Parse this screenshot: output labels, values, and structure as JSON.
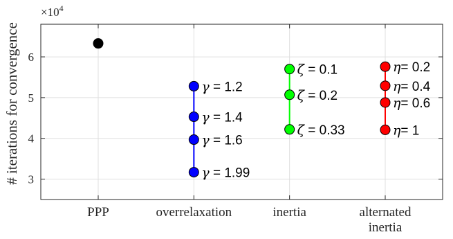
{
  "chart_data": {
    "type": "scatter",
    "title": "",
    "xlabel": "",
    "ylabel": "# iterations for convergence",
    "y_exponent_label": "×10",
    "y_exponent_power": "4",
    "ylim": [
      2.5,
      6.8
    ],
    "yticks": [
      "3",
      "4",
      "5",
      "6"
    ],
    "ytick_values": [
      3,
      4,
      5,
      6
    ],
    "grid": true,
    "categories": [
      {
        "lines": [
          "PPP"
        ]
      },
      {
        "lines": [
          "overrelaxation"
        ]
      },
      {
        "lines": [
          "inertia"
        ]
      },
      {
        "lines": [
          "alternated",
          "inertia"
        ]
      }
    ],
    "xlim": [
      0.4,
      4.6
    ],
    "series": [
      {
        "color": "#000000",
        "x": 1.0,
        "connected": false,
        "points": [
          {
            "y": 6.33,
            "symbol": "",
            "text": ""
          }
        ]
      },
      {
        "color": "#0000ff",
        "x": 2.0,
        "connected": true,
        "points": [
          {
            "y": 5.28,
            "symbol": "γ",
            "text": " = 1.2"
          },
          {
            "y": 4.53,
            "symbol": "γ",
            "text": " = 1.4"
          },
          {
            "y": 3.97,
            "symbol": "γ",
            "text": " = 1.6"
          },
          {
            "y": 3.17,
            "symbol": "γ",
            "text": " = 1.99"
          }
        ]
      },
      {
        "color": "#00ff00",
        "x": 3.0,
        "connected": true,
        "points": [
          {
            "y": 5.7,
            "symbol": "ζ",
            "text": " = 0.1"
          },
          {
            "y": 5.07,
            "symbol": "ζ",
            "text": " = 0.2"
          },
          {
            "y": 4.22,
            "symbol": "ζ",
            "text": " = 0.33"
          }
        ]
      },
      {
        "color": "#ff0000",
        "x": 4.0,
        "connected": true,
        "points": [
          {
            "y": 5.76,
            "symbol": "η",
            "text": "= 0.2"
          },
          {
            "y": 5.29,
            "symbol": "η",
            "text": "= 0.4"
          },
          {
            "y": 4.88,
            "symbol": "η",
            "text": "= 0.6"
          },
          {
            "y": 4.21,
            "symbol": "η",
            "text": "= 1"
          }
        ]
      }
    ]
  }
}
